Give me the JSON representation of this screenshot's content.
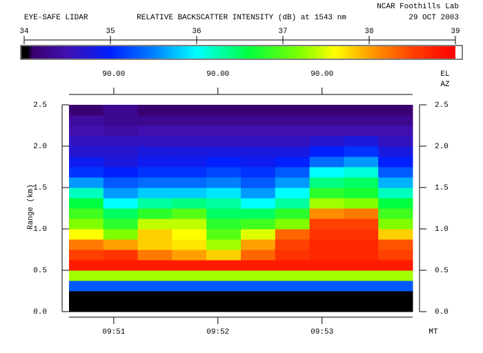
{
  "chart_data": {
    "type": "heatmap",
    "instrument": "EYE-SAFE LIDAR",
    "title": "RELATIVE BACKSCATTER INTENSITY (dB) at 1543 nm",
    "site": "NCAR Foothills Lab",
    "date": "29 OCT 2003",
    "colorbar_lim": [
      34,
      39
    ],
    "colorbar_ticks": [
      34,
      35,
      36,
      37,
      38,
      39
    ],
    "colorscale": [
      [
        34,
        "#000000"
      ],
      [
        34.1,
        "#3a0070"
      ],
      [
        34.5,
        "#4010b0"
      ],
      [
        35,
        "#0020ff"
      ],
      [
        35.5,
        "#0080ff"
      ],
      [
        36,
        "#00ffff"
      ],
      [
        36.6,
        "#00ff40"
      ],
      [
        37.2,
        "#80ff00"
      ],
      [
        37.6,
        "#ffff00"
      ],
      [
        38,
        "#ffa000"
      ],
      [
        38.5,
        "#ff4000"
      ],
      [
        39,
        "#ff0000"
      ]
    ],
    "el_labels": [
      "90.00",
      "90.00",
      "90.00"
    ],
    "el_label": "EL",
    "az_label": "AZ",
    "y_label": "Range (km)",
    "x_unit_label": "MT",
    "xlim": [
      590.57,
      593.87
    ],
    "xticks": [
      {
        "value": 591,
        "label": "09:51"
      },
      {
        "value": 592,
        "label": "09:52"
      },
      {
        "value": 593,
        "label": "09:53"
      }
    ],
    "ylim": [
      0,
      2.5
    ],
    "yticks": [
      {
        "value": 0,
        "label": "0.0"
      },
      0.5,
      {
        "value": 1,
        "label": "1.0"
      },
      1.5,
      {
        "value": 2,
        "label": "2.0"
      },
      2.5
    ],
    "x": [
      590.735,
      591.065,
      591.395,
      591.725,
      592.055,
      592.385,
      592.715,
      593.045,
      593.375,
      593.705
    ],
    "y": [
      0.0625,
      0.1875,
      0.3125,
      0.4375,
      0.5625,
      0.6875,
      0.8125,
      0.9375,
      1.0625,
      1.1875,
      1.3125,
      1.4375,
      1.5625,
      1.6875,
      1.8125,
      1.9375,
      2.0625,
      2.1875,
      2.3125,
      2.4375
    ],
    "z": [
      [
        34,
        34,
        34,
        34,
        34,
        34,
        34,
        34,
        34,
        34
      ],
      [
        34,
        34,
        34,
        34,
        34,
        34,
        34,
        34,
        34,
        34
      ],
      [
        35.3,
        35.3,
        35.3,
        35.3,
        35.3,
        35.3,
        35.3,
        35.3,
        35.3,
        35.3
      ],
      [
        37.3,
        37.3,
        37.3,
        37.3,
        37.3,
        37.3,
        37.3,
        37.3,
        37.3,
        37.3
      ],
      [
        38.8,
        38.8,
        38.8,
        38.8,
        38.8,
        38.8,
        38.8,
        38.8,
        38.8,
        38.8
      ],
      [
        38.5,
        38.6,
        38.2,
        38.0,
        37.8,
        38.3,
        38.6,
        38.7,
        38.7,
        38.5
      ],
      [
        38.2,
        38.0,
        37.8,
        37.7,
        37.3,
        38.0,
        38.5,
        38.7,
        38.7,
        38.4
      ],
      [
        37.6,
        37.2,
        37.8,
        37.6,
        37.0,
        37.5,
        38.3,
        38.6,
        38.6,
        37.8
      ],
      [
        37.2,
        36.8,
        37.4,
        37.4,
        36.8,
        36.9,
        37.2,
        38.5,
        38.5,
        37.2
      ],
      [
        36.9,
        36.5,
        36.8,
        37.0,
        36.5,
        36.5,
        36.8,
        38.1,
        38.2,
        36.9
      ],
      [
        36.6,
        36.0,
        36.3,
        36.4,
        36.3,
        36.0,
        36.3,
        37.3,
        37.2,
        36.6
      ],
      [
        36.2,
        35.6,
        35.8,
        35.8,
        35.9,
        35.6,
        36.0,
        36.8,
        36.7,
        36.2
      ],
      [
        35.6,
        35.3,
        35.4,
        35.4,
        35.5,
        35.3,
        35.6,
        36.4,
        36.5,
        35.7
      ],
      [
        35.1,
        35.0,
        35.1,
        35.1,
        35.2,
        35.1,
        35.3,
        36.0,
        36.1,
        35.3
      ],
      [
        34.9,
        34.8,
        34.9,
        34.9,
        35.0,
        34.9,
        35.0,
        35.4,
        35.6,
        35.0
      ],
      [
        34.7,
        34.7,
        34.8,
        34.8,
        34.8,
        34.8,
        34.8,
        35.0,
        35.1,
        34.8
      ],
      [
        34.6,
        34.6,
        34.6,
        34.6,
        34.6,
        34.6,
        34.6,
        34.7,
        34.8,
        34.6
      ],
      [
        34.5,
        34.4,
        34.5,
        34.5,
        34.5,
        34.5,
        34.5,
        34.5,
        34.5,
        34.5
      ],
      [
        34.4,
        34.3,
        34.3,
        34.3,
        34.3,
        34.3,
        34.3,
        34.3,
        34.3,
        34.3
      ],
      [
        34.1,
        34.3,
        34.1,
        34.1,
        34.1,
        34.1,
        34.1,
        34.1,
        34.1,
        34.1
      ]
    ]
  }
}
